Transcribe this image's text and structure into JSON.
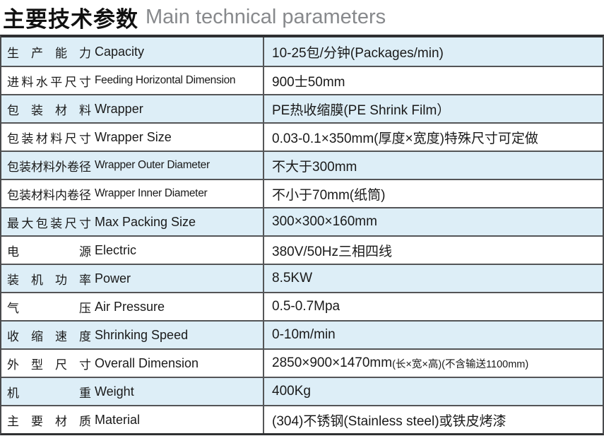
{
  "title": {
    "zh": "主要技术参数",
    "en": "Main technical parameters"
  },
  "colors": {
    "row_alt_blue": "#ddeef7",
    "border_dark": "#2e2f31",
    "border_gray": "#545557",
    "title_en_gray": "#87898c",
    "text": "#1a1a1a"
  },
  "table": {
    "rows": [
      {
        "zh": "生产能力",
        "en": "Capacity",
        "value": "10-25包/分钟(Packages/min)",
        "note": ""
      },
      {
        "zh": "进料水平尺寸",
        "en": "Feeding Horizontal Dimension",
        "value": "900士50mm",
        "note": ""
      },
      {
        "zh": "包装材料",
        "en": "Wrapper",
        "value": "PE热收缩膜(PE Shrink Film）",
        "note": ""
      },
      {
        "zh": "包装材料尺寸",
        "en": "Wrapper Size",
        "value": "0.03-0.1×350mm(厚度×宽度)特殊尺寸可定做",
        "note": ""
      },
      {
        "zh": "包装材料外卷径",
        "en": "Wrapper Outer Diameter",
        "value": "不大于300mm",
        "note": ""
      },
      {
        "zh": "包装材料内卷径",
        "en": "Wrapper Inner Diameter",
        "value": "不小于70mm(纸筒)",
        "note": ""
      },
      {
        "zh": "最大包装尺寸",
        "en": "Max Packing Size",
        "value": "300×300×160mm",
        "note": ""
      },
      {
        "zh": "电源",
        "en": "Electric",
        "value": "380V/50Hz三相四线",
        "note": ""
      },
      {
        "zh": "装机功率",
        "en": "Power",
        "value": "8.5KW",
        "note": ""
      },
      {
        "zh": "气压",
        "en": "Air Pressure",
        "value": "0.5-0.7Mpa",
        "note": ""
      },
      {
        "zh": "收缩速度",
        "en": "Shrinking Speed",
        "value": "0-10m/min",
        "note": ""
      },
      {
        "zh": "外型尺寸",
        "en": "Overall Dimension",
        "value": "2850×900×1470mm",
        "note": "(长×宽×高)(不含输送1100mm)"
      },
      {
        "zh": "机重",
        "en": "Weight",
        "value": "400Kg",
        "note": ""
      },
      {
        "zh": "主要材质",
        "en": "Material",
        "value": "(304)不锈钢(Stainless steel)或铁皮烤漆",
        "note": ""
      }
    ]
  }
}
